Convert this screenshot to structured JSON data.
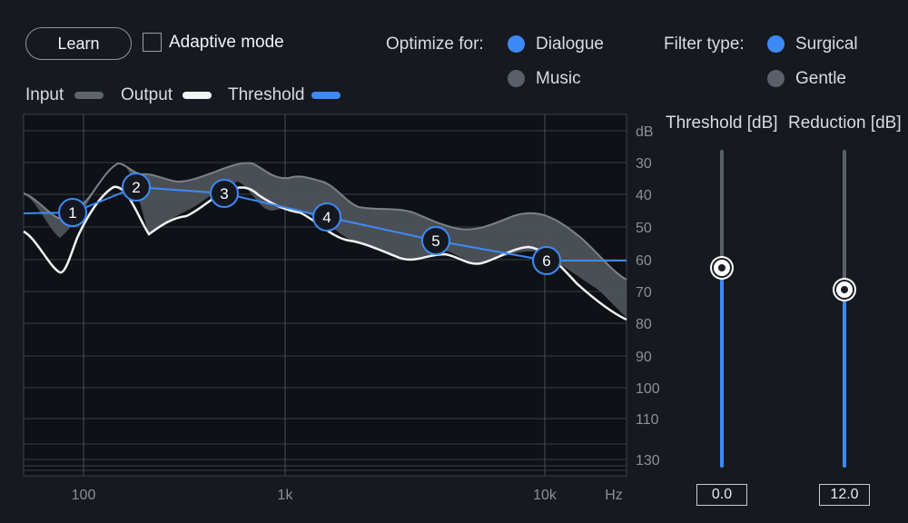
{
  "toolbar": {
    "learn_label": "Learn",
    "adaptive_label": "Adaptive mode",
    "adaptive_checked": false
  },
  "optimize": {
    "label": "Optimize for:",
    "options": [
      {
        "label": "Dialogue",
        "selected": true
      },
      {
        "label": "Music",
        "selected": false
      }
    ]
  },
  "filter": {
    "label": "Filter type:",
    "options": [
      {
        "label": "Surgical",
        "selected": true
      },
      {
        "label": "Gentle",
        "selected": false
      }
    ]
  },
  "legend": [
    {
      "label": "Input",
      "color": "#5e646c"
    },
    {
      "label": "Output",
      "color": "#f2f4f6"
    },
    {
      "label": "Threshold",
      "color": "#3d8af7"
    }
  ],
  "graph": {
    "db_unit": "dB",
    "db_ticks": [
      "30",
      "40",
      "50",
      "60",
      "70",
      "80",
      "90",
      "100",
      "110",
      "130"
    ],
    "hz_ticks": [
      "100",
      "1k",
      "10k"
    ],
    "hz_unit": "Hz",
    "nodes": [
      "1",
      "2",
      "3",
      "4",
      "5",
      "6"
    ]
  },
  "sliders": {
    "threshold": {
      "label": "Threshold [dB]",
      "value": "0.0",
      "level": 0.63
    },
    "reduction": {
      "label": "Reduction [dB]",
      "value": "12.0",
      "level": 0.56
    }
  },
  "colors": {
    "accent": "#3d8af7",
    "background": "#161a20"
  }
}
